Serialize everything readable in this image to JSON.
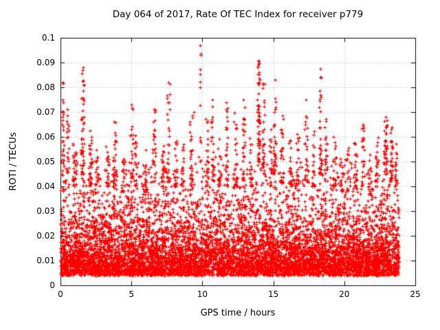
{
  "chart_data": {
    "type": "scatter",
    "title": "Day 064 of 2017, Rate Of TEC Index for receiver p779",
    "xlabel": "GPS time / hours",
    "ylabel": "ROTI / TECUs",
    "xlim": [
      0,
      25
    ],
    "ylim": [
      0,
      0.1
    ],
    "xticks": {
      "values": [
        0,
        5,
        10,
        15,
        20,
        25
      ],
      "labels": [
        "0",
        "5",
        "10",
        "15",
        "20",
        "25"
      ]
    },
    "yticks": {
      "values": [
        0,
        0.01,
        0.02,
        0.03,
        0.04,
        0.05,
        0.06,
        0.07,
        0.08,
        0.09,
        0.1
      ],
      "labels": [
        "0",
        "0.01",
        "0.02",
        "0.03",
        "0.04",
        "0.05",
        "0.06",
        "0.07",
        "0.08",
        "0.09",
        "0.1"
      ]
    },
    "grid": "dotted",
    "legend": "none",
    "marker": {
      "shape": "plus",
      "size": 5
    },
    "colors": {
      "marker": "#ff0000",
      "grid": "#a0a0a0",
      "axis": "#000000",
      "background": "#ffffff",
      "text": "#000000"
    },
    "x_data_range": [
      0,
      23.85
    ],
    "point_synthesis": {
      "seed": 2017064,
      "base_layers": [
        {
          "count": 6500,
          "y_offset": 0.004,
          "exp_mean": 0.01,
          "y_cap": 0.052
        },
        {
          "count": 2000,
          "y_offset": 0.006,
          "exp_mean": 0.015,
          "y_cap": 0.05
        }
      ],
      "cluster_format": [
        "x_center",
        "x_spread",
        "count",
        "y_base",
        "y_max"
      ],
      "clusters": [
        [
          0.15,
          0.08,
          25,
          0.045,
          0.083
        ],
        [
          0.5,
          0.1,
          20,
          0.045,
          0.071
        ],
        [
          1.0,
          0.15,
          30,
          0.04,
          0.058
        ],
        [
          1.55,
          0.12,
          45,
          0.045,
          0.088
        ],
        [
          2.1,
          0.1,
          25,
          0.04,
          0.063
        ],
        [
          2.6,
          0.15,
          20,
          0.04,
          0.055
        ],
        [
          3.3,
          0.1,
          20,
          0.04,
          0.057
        ],
        [
          3.8,
          0.12,
          30,
          0.04,
          0.066
        ],
        [
          4.4,
          0.1,
          15,
          0.038,
          0.052
        ],
        [
          5.0,
          0.1,
          25,
          0.042,
          0.073
        ],
        [
          5.3,
          0.08,
          20,
          0.04,
          0.062
        ],
        [
          6.0,
          0.1,
          15,
          0.038,
          0.055
        ],
        [
          6.6,
          0.1,
          25,
          0.04,
          0.071
        ],
        [
          7.2,
          0.1,
          20,
          0.04,
          0.058
        ],
        [
          7.6,
          0.1,
          30,
          0.042,
          0.082
        ],
        [
          8.1,
          0.1,
          20,
          0.04,
          0.06
        ],
        [
          8.6,
          0.1,
          20,
          0.04,
          0.058
        ],
        [
          9.2,
          0.1,
          25,
          0.04,
          0.07
        ],
        [
          9.85,
          0.05,
          12,
          0.05,
          0.097
        ],
        [
          10.3,
          0.1,
          25,
          0.04,
          0.068
        ],
        [
          10.7,
          0.1,
          25,
          0.042,
          0.075
        ],
        [
          11.2,
          0.1,
          20,
          0.04,
          0.06
        ],
        [
          11.7,
          0.1,
          25,
          0.04,
          0.074
        ],
        [
          12.3,
          0.1,
          25,
          0.04,
          0.07
        ],
        [
          12.9,
          0.1,
          25,
          0.04,
          0.075
        ],
        [
          13.4,
          0.1,
          20,
          0.04,
          0.06
        ],
        [
          13.95,
          0.08,
          60,
          0.05,
          0.091
        ],
        [
          14.3,
          0.08,
          30,
          0.045,
          0.082
        ],
        [
          14.8,
          0.1,
          20,
          0.04,
          0.065
        ],
        [
          15.1,
          0.08,
          30,
          0.045,
          0.083
        ],
        [
          15.6,
          0.1,
          25,
          0.04,
          0.07
        ],
        [
          16.2,
          0.1,
          20,
          0.04,
          0.06
        ],
        [
          16.7,
          0.1,
          20,
          0.04,
          0.062
        ],
        [
          17.3,
          0.1,
          25,
          0.042,
          0.075
        ],
        [
          17.8,
          0.1,
          20,
          0.04,
          0.065
        ],
        [
          18.3,
          0.1,
          35,
          0.045,
          0.088
        ],
        [
          18.7,
          0.1,
          25,
          0.042,
          0.072
        ],
        [
          19.3,
          0.1,
          20,
          0.04,
          0.06
        ],
        [
          19.8,
          0.1,
          15,
          0.038,
          0.055
        ],
        [
          20.3,
          0.1,
          15,
          0.038,
          0.056
        ],
        [
          20.8,
          0.1,
          20,
          0.04,
          0.06
        ],
        [
          21.3,
          0.1,
          20,
          0.04,
          0.065
        ],
        [
          21.8,
          0.1,
          15,
          0.038,
          0.055
        ],
        [
          22.3,
          0.1,
          20,
          0.04,
          0.06
        ],
        [
          22.9,
          0.12,
          40,
          0.045,
          0.068
        ],
        [
          23.3,
          0.1,
          30,
          0.042,
          0.065
        ],
        [
          23.6,
          0.08,
          20,
          0.04,
          0.058
        ]
      ],
      "outliers": [
        [
          0.15,
          0.082
        ],
        [
          0.5,
          0.071
        ],
        [
          1.5,
          0.0855
        ],
        [
          1.6,
          0.088
        ],
        [
          3.8,
          0.066
        ],
        [
          5.0,
          0.073
        ],
        [
          6.6,
          0.071
        ],
        [
          7.6,
          0.082
        ],
        [
          9.4,
          0.07
        ],
        [
          9.85,
          0.097
        ],
        [
          10.7,
          0.075
        ],
        [
          11.7,
          0.074
        ],
        [
          12.9,
          0.075
        ],
        [
          13.9,
          0.0885
        ],
        [
          13.95,
          0.0905
        ],
        [
          14.0,
          0.086
        ],
        [
          14.05,
          0.083
        ],
        [
          14.3,
          0.0815
        ],
        [
          15.1,
          0.083
        ],
        [
          17.3,
          0.075
        ],
        [
          18.3,
          0.0875
        ],
        [
          18.35,
          0.084
        ],
        [
          21.3,
          0.065
        ],
        [
          22.9,
          0.068
        ]
      ]
    }
  }
}
